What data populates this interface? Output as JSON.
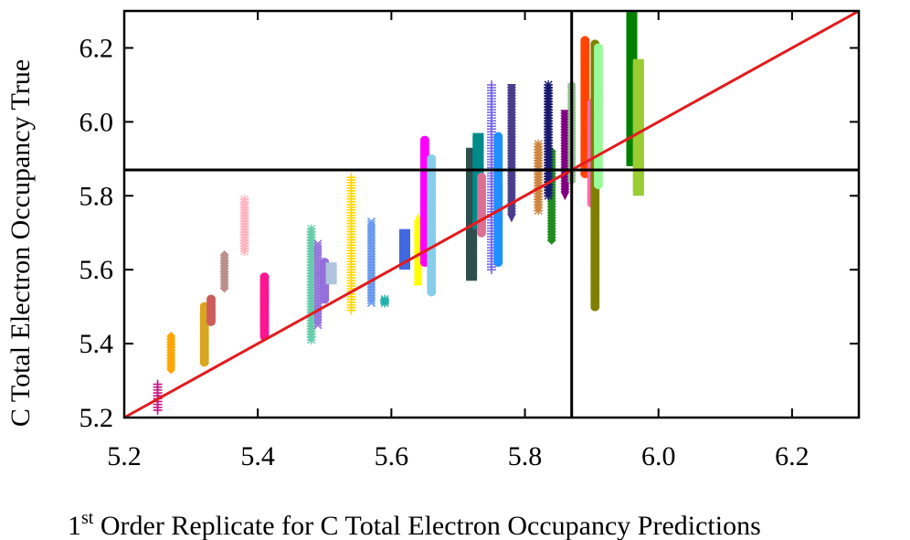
{
  "chart_data": {
    "type": "scatter",
    "title": "",
    "xlabel_pre": "1",
    "xlabel_sup": "st",
    "xlabel_post": " Order Replicate for C Total Electron Occupancy Predictions",
    "ylabel": "C Total Electron Occupancy True",
    "xlim": [
      5.2,
      6.3
    ],
    "ylim": [
      5.2,
      6.3
    ],
    "xticks": [
      "5.2",
      "5.4",
      "5.6",
      "5.8",
      "6.0",
      "6.2"
    ],
    "yticks": [
      "5.2",
      "5.4",
      "5.6",
      "5.8",
      "6.0",
      "6.2"
    ],
    "grid": false,
    "legend": "none",
    "reference_line": {
      "x": [
        5.2,
        6.3
      ],
      "y": [
        5.2,
        6.3
      ],
      "color": "#e41a1c"
    },
    "crosshair": {
      "x": 5.87,
      "y": 5.87,
      "color": "#000000"
    },
    "columns": [
      {
        "x": 5.25,
        "ymin": 5.22,
        "ymax": 5.29,
        "color": "#c71585",
        "marker": "plus"
      },
      {
        "x": 5.27,
        "ymin": 5.33,
        "ymax": 5.42,
        "color": "#ffa500",
        "marker": "diamond"
      },
      {
        "x": 5.32,
        "ymin": 5.35,
        "ymax": 5.5,
        "color": "#daa520",
        "marker": "circle"
      },
      {
        "x": 5.33,
        "ymin": 5.46,
        "ymax": 5.52,
        "color": "#cd5c5c",
        "marker": "circle"
      },
      {
        "x": 5.35,
        "ymin": 5.55,
        "ymax": 5.64,
        "color": "#bc8f8f",
        "marker": "diamond"
      },
      {
        "x": 5.38,
        "ymin": 5.65,
        "ymax": 5.79,
        "color": "#ffb6c1",
        "marker": "star"
      },
      {
        "x": 5.41,
        "ymin": 5.42,
        "ymax": 5.58,
        "color": "#ff1493",
        "marker": "circle"
      },
      {
        "x": 5.48,
        "ymin": 5.41,
        "ymax": 5.71,
        "color": "#66cdaa",
        "marker": "star"
      },
      {
        "x": 5.49,
        "ymin": 5.45,
        "ymax": 5.67,
        "color": "#9370db",
        "marker": "cross"
      },
      {
        "x": 5.5,
        "ymin": 5.52,
        "ymax": 5.62,
        "color": "#9370db",
        "marker": "circle"
      },
      {
        "x": 5.51,
        "ymin": 5.57,
        "ymax": 5.61,
        "color": "#b0c4de",
        "marker": "square"
      },
      {
        "x": 5.54,
        "ymin": 5.49,
        "ymax": 5.85,
        "color": "#ffd700",
        "marker": "plus"
      },
      {
        "x": 5.57,
        "ymin": 5.51,
        "ymax": 5.73,
        "color": "#6495ed",
        "marker": "cross"
      },
      {
        "x": 5.59,
        "ymin": 5.51,
        "ymax": 5.52,
        "color": "#20b2aa",
        "marker": "star"
      },
      {
        "x": 5.62,
        "ymin": 5.61,
        "ymax": 5.7,
        "color": "#4169e1",
        "marker": "square"
      },
      {
        "x": 5.64,
        "ymin": 5.57,
        "ymax": 5.74,
        "color": "#ffff00",
        "marker": "triangle"
      },
      {
        "x": 5.65,
        "ymin": 5.62,
        "ymax": 5.95,
        "color": "#ff00ff",
        "marker": "circle"
      },
      {
        "x": 5.66,
        "ymin": 5.54,
        "ymax": 5.9,
        "color": "#87ceeb",
        "marker": "circle"
      },
      {
        "x": 5.72,
        "ymin": 5.58,
        "ymax": 5.92,
        "color": "#2f4f4f",
        "marker": "square"
      },
      {
        "x": 5.73,
        "ymin": 5.72,
        "ymax": 5.96,
        "color": "#008b8b",
        "marker": "square"
      },
      {
        "x": 5.735,
        "ymin": 5.7,
        "ymax": 5.85,
        "color": "#db7093",
        "marker": "circle"
      },
      {
        "x": 5.75,
        "ymin": 5.6,
        "ymax": 6.1,
        "color": "#7b68ee",
        "marker": "plus"
      },
      {
        "x": 5.76,
        "ymin": 5.62,
        "ymax": 5.96,
        "color": "#1e90ff",
        "marker": "circle"
      },
      {
        "x": 5.78,
        "ymin": 5.74,
        "ymax": 6.09,
        "color": "#483d8b",
        "marker": "triangle_down"
      },
      {
        "x": 5.82,
        "ymin": 5.76,
        "ymax": 5.94,
        "color": "#cd853f",
        "marker": "star"
      },
      {
        "x": 5.84,
        "ymin": 5.68,
        "ymax": 5.92,
        "color": "#228b22",
        "marker": "diamond"
      },
      {
        "x": 5.835,
        "ymin": 5.8,
        "ymax": 6.1,
        "color": "#191970",
        "marker": "star"
      },
      {
        "x": 5.86,
        "ymin": 5.8,
        "ymax": 6.02,
        "color": "#800080",
        "marker": "triangle_down"
      },
      {
        "x": 5.87,
        "ymin": 5.84,
        "ymax": 6.1,
        "color": "#8fbc8f",
        "marker": "diamond"
      },
      {
        "x": 5.89,
        "ymin": 5.86,
        "ymax": 6.22,
        "color": "#ff4500",
        "marker": "circle"
      },
      {
        "x": 5.9,
        "ymin": 5.78,
        "ymax": 6.05,
        "color": "#ff69b4",
        "marker": "circle"
      },
      {
        "x": 5.905,
        "ymin": 5.5,
        "ymax": 6.21,
        "color": "#808000",
        "marker": "circle"
      },
      {
        "x": 5.91,
        "ymin": 5.83,
        "ymax": 6.2,
        "color": "#98fb98",
        "marker": "circle"
      },
      {
        "x": 5.96,
        "ymin": 5.89,
        "ymax": 6.29,
        "color": "#008000",
        "marker": "square"
      },
      {
        "x": 5.97,
        "ymin": 5.81,
        "ymax": 6.16,
        "color": "#9acd32",
        "marker": "square"
      }
    ]
  }
}
